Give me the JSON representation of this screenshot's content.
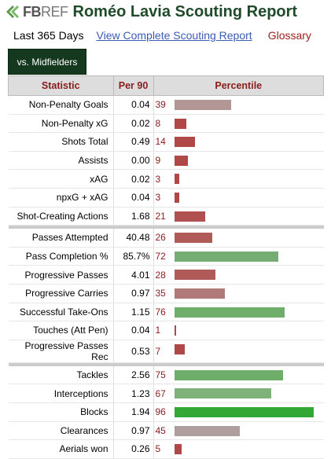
{
  "header": {
    "logo_fb": "FB",
    "logo_ref": "REF",
    "title": "Roméo Lavia Scouting Report"
  },
  "subnav": {
    "period": "Last 365 Days",
    "link": "View Complete Scouting Report",
    "glossary": "Glossary"
  },
  "tab": {
    "label": "vs. Midfielders"
  },
  "table": {
    "headers": {
      "stat": "Statistic",
      "per90": "Per 90",
      "pct": "Percentile"
    },
    "groups": [
      [
        {
          "stat": "Non-Penalty Goals",
          "per90": "0.04",
          "pct": "39",
          "value": 39,
          "color": "#b39696"
        },
        {
          "stat": "Non-Penalty xG",
          "per90": "0.02",
          "pct": "8",
          "value": 8,
          "color": "#b04848"
        },
        {
          "stat": "Shots Total",
          "per90": "0.49",
          "pct": "14",
          "value": 14,
          "color": "#b04848"
        },
        {
          "stat": "Assists",
          "per90": "0.00",
          "pct": "9",
          "value": 9,
          "color": "#b04848"
        },
        {
          "stat": "xAG",
          "per90": "0.02",
          "pct": "3",
          "value": 3,
          "color": "#b04848"
        },
        {
          "stat": "npxG + xAG",
          "per90": "0.04",
          "pct": "3",
          "value": 3,
          "color": "#b04848"
        },
        {
          "stat": "Shot-Creating Actions",
          "per90": "1.68",
          "pct": "21",
          "value": 21,
          "color": "#b05050"
        }
      ],
      [
        {
          "stat": "Passes Attempted",
          "per90": "40.48",
          "pct": "26",
          "value": 26,
          "color": "#b05a5a"
        },
        {
          "stat": "Pass Completion %",
          "per90": "85.7%",
          "pct": "72",
          "value": 72,
          "color": "#76ad72"
        },
        {
          "stat": "Progressive Passes",
          "per90": "4.01",
          "pct": "28",
          "value": 28,
          "color": "#b05a5a"
        },
        {
          "stat": "Progressive Carries",
          "per90": "0.97",
          "pct": "35",
          "value": 35,
          "color": "#b07a7a"
        },
        {
          "stat": "Successful Take-Ons",
          "per90": "1.15",
          "pct": "76",
          "value": 76,
          "color": "#6fad6b"
        },
        {
          "stat": "Touches (Att Pen)",
          "per90": "0.04",
          "pct": "1",
          "value": 1,
          "color": "#b04848"
        },
        {
          "stat": "Progressive Passes Rec",
          "per90": "0.53",
          "pct": "7",
          "value": 7,
          "color": "#b04848"
        }
      ],
      [
        {
          "stat": "Tackles",
          "per90": "2.56",
          "pct": "75",
          "value": 75,
          "color": "#6fad6b"
        },
        {
          "stat": "Interceptions",
          "per90": "1.23",
          "pct": "67",
          "value": 67,
          "color": "#7fb27b"
        },
        {
          "stat": "Blocks",
          "per90": "1.94",
          "pct": "96",
          "value": 96,
          "color": "#34a834"
        },
        {
          "stat": "Clearances",
          "per90": "0.97",
          "pct": "45",
          "value": 45,
          "color": "#ae9e9e"
        },
        {
          "stat": "Aerials won",
          "per90": "0.26",
          "pct": "5",
          "value": 5,
          "color": "#b04848"
        }
      ]
    ]
  }
}
